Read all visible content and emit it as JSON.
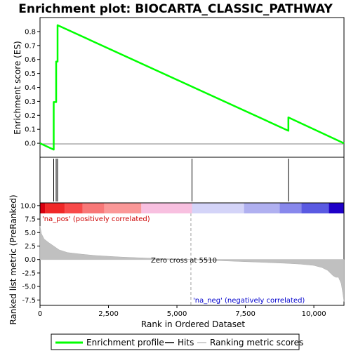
{
  "chart_data": {
    "type": "line",
    "title": "Enrichment plot: BIOCARTA_CLASSIC_PATHWAY",
    "top_panel": {
      "ylabel": "Enrichment score (ES)",
      "ylim": [
        -0.1,
        0.9
      ],
      "yticks": [
        "0.0",
        "0.1",
        "0.2",
        "0.3",
        "0.4",
        "0.5",
        "0.6",
        "0.7",
        "0.8"
      ],
      "series": [
        {
          "name": "Enrichment profile",
          "color": "#00ff00",
          "x": [
            0,
            500,
            500,
            590,
            590,
            640,
            640,
            9070,
            9070,
            11100
          ],
          "y": [
            0.0,
            -0.045,
            0.295,
            0.295,
            0.585,
            0.585,
            0.845,
            0.09,
            0.185,
            0.0
          ]
        }
      ]
    },
    "hits": {
      "name": "Hits",
      "x": [
        500,
        590,
        640,
        5550,
        9070
      ]
    },
    "bottom_panel": {
      "ylabel": "Ranked list metric (PreRanked)",
      "xlabel": "Rank in Ordered Dataset",
      "ylim": [
        -8.5,
        10.5
      ],
      "yticks": [
        "-7.5",
        "-5.0",
        "-2.5",
        "0.0",
        "2.5",
        "5.0",
        "7.5",
        "10.0"
      ],
      "xticks": [
        "0",
        "2,500",
        "5,000",
        "7,500",
        "10,000"
      ],
      "metric": {
        "name": "Ranking metric scores",
        "x": [
          0,
          50,
          150,
          300,
          500,
          700,
          1000,
          1500,
          2000,
          2500,
          3000,
          3500,
          4000,
          4500,
          5000,
          5510,
          6000,
          7000,
          8000,
          9000,
          9500,
          10000,
          10300,
          10500,
          10700,
          10800,
          10900,
          11000,
          11050,
          11100
        ],
        "y": [
          6.2,
          4.8,
          3.8,
          3.2,
          2.5,
          1.8,
          1.3,
          1.0,
          0.75,
          0.6,
          0.45,
          0.35,
          0.25,
          0.15,
          0.07,
          0.0,
          -0.1,
          -0.3,
          -0.5,
          -0.7,
          -0.85,
          -1.1,
          -1.5,
          -2.0,
          -3.0,
          -3.3,
          -3.3,
          -4.5,
          -6.0,
          -7.8
        ]
      },
      "zero_cross_label": "Zero cross at 5510",
      "zero_cross_x": 5510,
      "pos_label": "'na_pos' (positively correlated)",
      "neg_label": "'na_neg' (negatively correlated)"
    },
    "xlim": [
      0,
      11100
    ],
    "colors": {
      "profile": "#00ff00",
      "pos_label": "#cc0000",
      "neg_label": "#0000cc",
      "metric_fill": "#c0c0c0",
      "zero_line": "#a0a0a0"
    },
    "heat_strip": [
      {
        "from": 0,
        "to": 180,
        "color": "#d8000f"
      },
      {
        "from": 180,
        "to": 900,
        "color": "#f02828"
      },
      {
        "from": 900,
        "to": 1550,
        "color": "#f84a4a"
      },
      {
        "from": 1550,
        "to": 2350,
        "color": "#f87878"
      },
      {
        "from": 2350,
        "to": 3700,
        "color": "#fa9898"
      },
      {
        "from": 3700,
        "to": 5550,
        "color": "#f8c0e0"
      },
      {
        "from": 5550,
        "to": 7450,
        "color": "#d4d4f8"
      },
      {
        "from": 7450,
        "to": 8750,
        "color": "#b0b0f0"
      },
      {
        "from": 8750,
        "to": 9550,
        "color": "#8888ec"
      },
      {
        "from": 9550,
        "to": 10550,
        "color": "#5a5ae2"
      },
      {
        "from": 10550,
        "to": 11100,
        "color": "#1e00c8"
      }
    ],
    "legend": {
      "items": [
        "Enrichment profile",
        "Hits",
        "Ranking metric scores"
      ],
      "placement": "bottom"
    }
  }
}
